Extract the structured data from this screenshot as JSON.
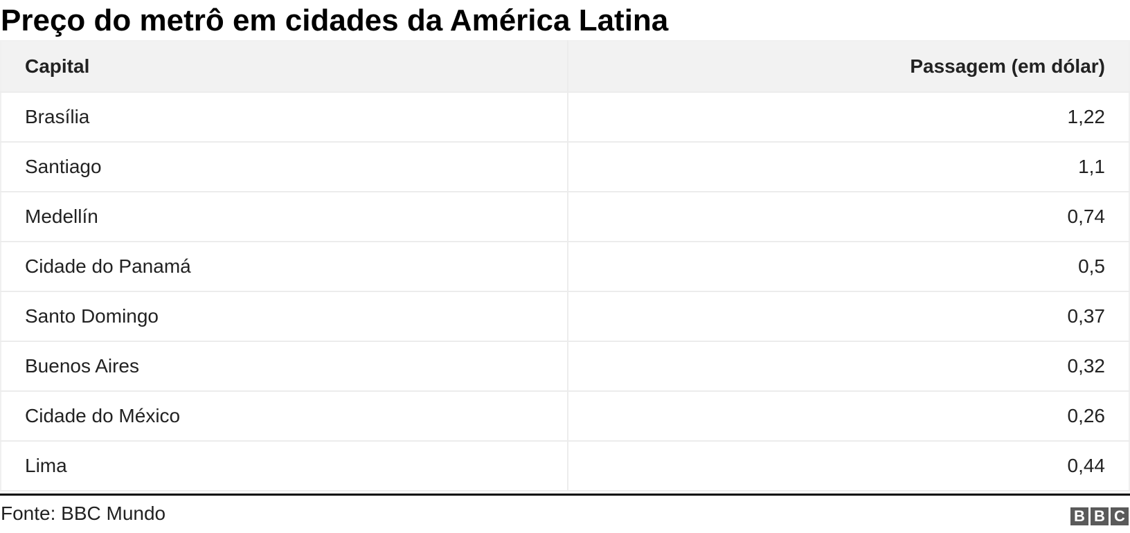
{
  "title": "Preço do metrô em cidades da América Latina",
  "table": {
    "headers": [
      "Capital",
      "Passagem (em dólar)"
    ],
    "rows": [
      [
        "Brasília",
        "1,22"
      ],
      [
        "Santiago",
        "1,1"
      ],
      [
        "Medellín",
        "0,74"
      ],
      [
        "Cidade do Panamá",
        "0,5"
      ],
      [
        "Santo Domingo",
        "0,37"
      ],
      [
        "Buenos Aires",
        "0,32"
      ],
      [
        "Cidade do México",
        "0,26"
      ],
      [
        "Lima",
        "0,44"
      ]
    ]
  },
  "footer": {
    "source": "Fonte: BBC Mundo",
    "logo": [
      "B",
      "B",
      "C"
    ]
  }
}
